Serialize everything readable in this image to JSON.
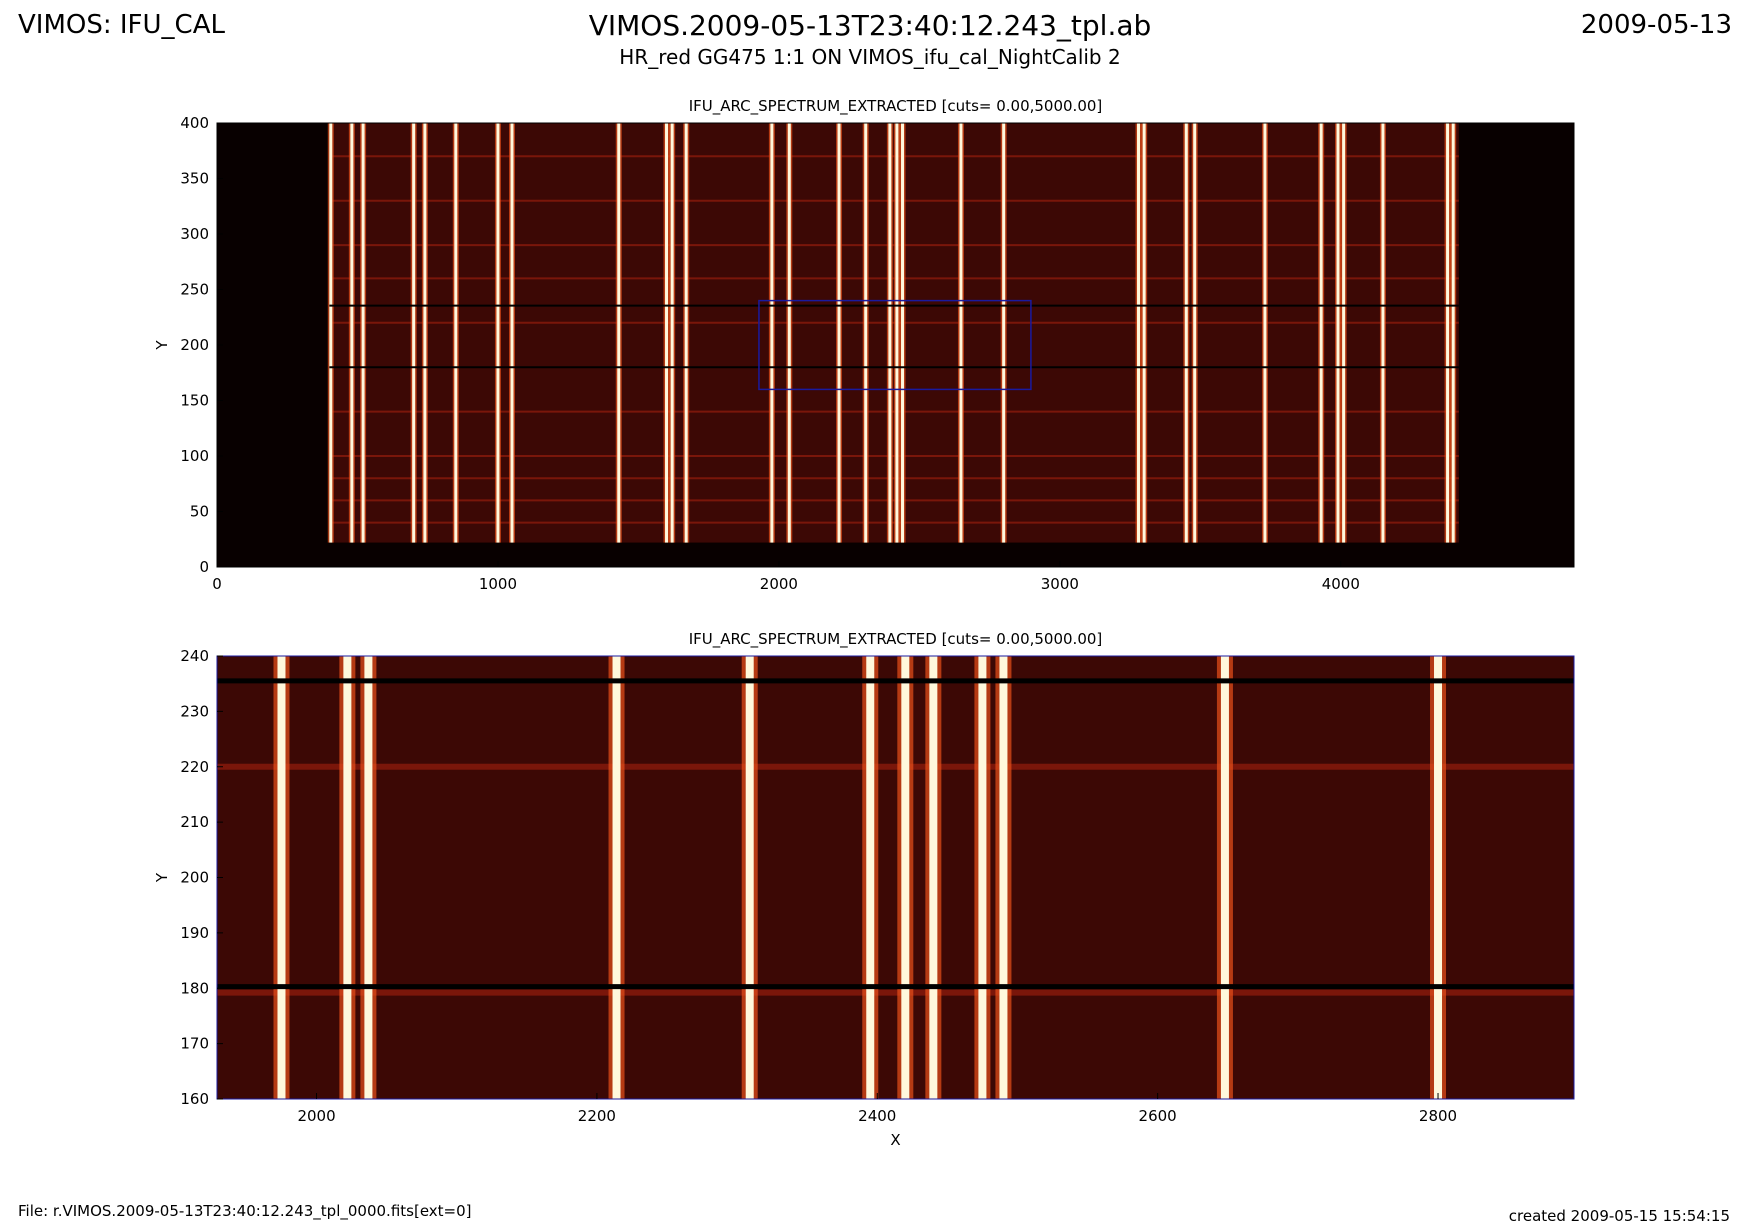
{
  "header": {
    "left": "VIMOS: IFU_CAL",
    "title": "VIMOS.2009-05-13T23:40:12.243_tpl.ab",
    "subtitle": "HR_red GG475 1:1 ON VIMOS_ifu_cal_NightCalib 2",
    "right": "2009-05-13"
  },
  "footer": {
    "file": "File: r.VIMOS.2009-05-13T23:40:12.243_tpl_0000.fits[ext=0]",
    "created": "created 2009-05-15 15:54:15"
  },
  "chart_data": [
    {
      "type": "image",
      "title": "IFU_ARC_SPECTRUM_EXTRACTED [cuts= 0.00,5000.00]",
      "ylabel": "Y",
      "xlim": [
        0,
        4830
      ],
      "ylim": [
        0,
        400
      ],
      "xticks": [
        0,
        1000,
        2000,
        3000,
        4000
      ],
      "yticks": [
        0,
        50,
        100,
        150,
        200,
        250,
        300,
        350,
        400
      ],
      "extent": [
        400,
        4420,
        22,
        400
      ],
      "background": "#3c0805",
      "lines_x": [
        405,
        480,
        520,
        700,
        740,
        850,
        1000,
        1050,
        1430,
        1600,
        1620,
        1670,
        1975,
        2037,
        2214,
        2309,
        2395,
        2420,
        2440,
        2648,
        2800,
        3280,
        3300,
        3450,
        3480,
        3730,
        3930,
        3990,
        4010,
        4150,
        4380,
        4400
      ],
      "dark_rows": [
        180,
        235.5
      ],
      "bright_rows": [
        40,
        60,
        80,
        100,
        140,
        220,
        260,
        290,
        330,
        370
      ],
      "zoom_box": true,
      "box_color": "#1a1aa0"
    },
    {
      "type": "image",
      "title": "IFU_ARC_SPECTRUM_EXTRACTED [cuts= 0.00,5000.00]",
      "xlabel": "X",
      "ylabel": "Y",
      "xlim": [
        1929,
        2897
      ],
      "ylim": [
        160,
        240
      ],
      "xticks": [
        2000,
        2200,
        2400,
        2600,
        2800
      ],
      "yticks": [
        160,
        170,
        180,
        190,
        200,
        210,
        220,
        230,
        240
      ],
      "extent": [
        1929,
        2897,
        160,
        240
      ],
      "background": "#3c0805",
      "lines_x": [
        1975,
        2022,
        2037,
        2214,
        2309,
        2395,
        2420,
        2440,
        2475,
        2490,
        2648,
        2800
      ],
      "dark_rows": [
        180.3,
        235.5
      ],
      "bright_rows": [
        179.2,
        220
      ],
      "zoom_box": false
    }
  ]
}
